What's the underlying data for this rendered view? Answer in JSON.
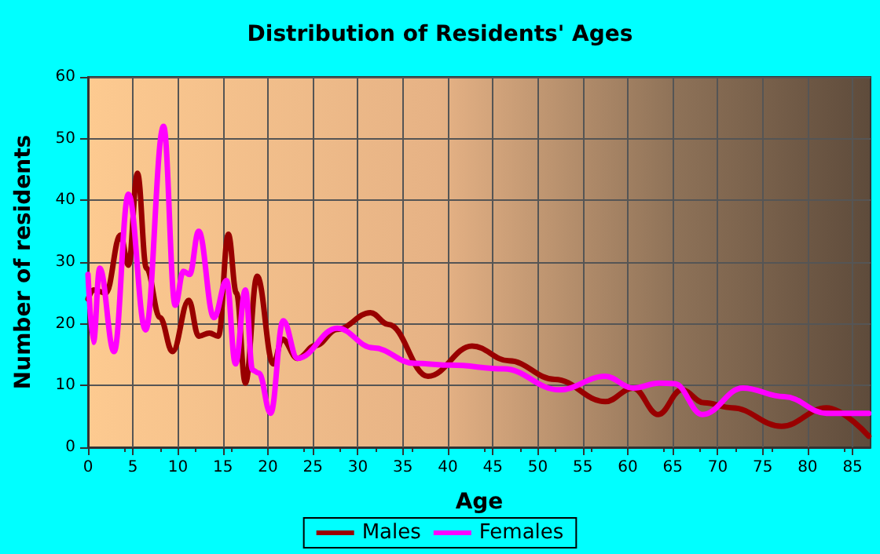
{
  "chart_data": {
    "type": "line",
    "title": "Distribution of Residents' Ages",
    "xlabel": "Age",
    "ylabel": "Number of residents",
    "xlim": [
      0,
      87
    ],
    "xticks": [
      0,
      5,
      10,
      15,
      20,
      25,
      30,
      35,
      40,
      45,
      50,
      55,
      60,
      65,
      70,
      75,
      80,
      85
    ],
    "ylim": [
      0,
      60
    ],
    "yticks": [
      0,
      10,
      20,
      30,
      40,
      50,
      60
    ],
    "grid": true,
    "legend": "bottom",
    "marker": "none",
    "line_style": "solid",
    "series": [
      {
        "name": "Males",
        "color": "#990000",
        "x": [
          0,
          0.6,
          2,
          3.6,
          4.5,
          5.5,
          6.5,
          8,
          9.4,
          11.2,
          12.3,
          13.5,
          14.5,
          15.6,
          16.5,
          17.5,
          18.8,
          20.6,
          21.6,
          23.3,
          25.3,
          27.7,
          31.4,
          33.4,
          37.8,
          42.7,
          46.8,
          51.9,
          57.5,
          60.6,
          63.4,
          66,
          68.5,
          71.6,
          77.1,
          82.1,
          86.8
        ],
        "values": [
          24,
          25.5,
          25,
          34.4,
          29.5,
          44.4,
          29,
          21,
          15.5,
          23.8,
          18,
          18.5,
          18,
          34.5,
          25,
          10.4,
          27.7,
          13.5,
          17.5,
          14.4,
          16.5,
          19.1,
          21.8,
          19.9,
          11.5,
          16.4,
          14,
          11,
          7.4,
          9.6,
          5.3,
          9.3,
          7.2,
          6.4,
          3.4,
          6.4,
          1.8
        ]
      },
      {
        "name": "Females",
        "color": "#ff00ff",
        "x": [
          0,
          0.6,
          1.3,
          2.9,
          4.5,
          6.4,
          8.4,
          9.7,
          10.6,
          11.3,
          12.3,
          14,
          15.4,
          16.4,
          17.5,
          18.3,
          19,
          20.3,
          21.7,
          23.3,
          27.7,
          31.7,
          36.3,
          40.4,
          46.2,
          52.4,
          57.5,
          60.6,
          63.5,
          65.2,
          68.3,
          72.8,
          77.4,
          82.1,
          86.8
        ],
        "values": [
          28,
          17,
          29,
          15.5,
          41,
          19,
          52,
          23,
          28.5,
          28,
          35,
          21,
          27,
          13.5,
          25.5,
          12.5,
          12,
          5.5,
          20.5,
          14.4,
          19.3,
          16.1,
          13.6,
          13.3,
          12.7,
          9.3,
          11.5,
          9.6,
          10.4,
          10.3,
          5.3,
          9.6,
          8.2,
          5.5,
          5.5
        ]
      }
    ]
  }
}
